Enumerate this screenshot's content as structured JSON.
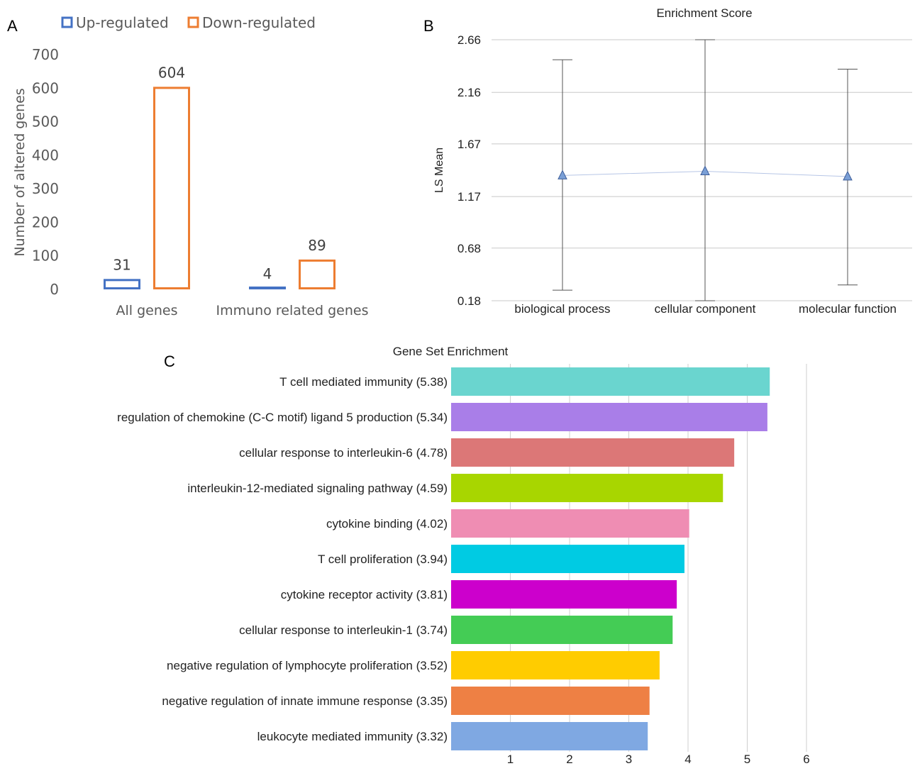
{
  "panels": {
    "a": "A",
    "b": "B",
    "c": "C"
  },
  "chart_data": [
    {
      "id": "A",
      "type": "bar",
      "categories": [
        "All genes",
        "Immuno related genes"
      ],
      "series": [
        {
          "name": "Up-regulated",
          "values": [
            31,
            4
          ],
          "color": "#4472c4"
        },
        {
          "name": "Down-regulated",
          "values": [
            604,
            89
          ],
          "color": "#ed7d31"
        }
      ],
      "ylabel": "Number of altered genes",
      "ylim": [
        0,
        700
      ],
      "yticks": [
        0,
        100,
        200,
        300,
        400,
        500,
        600,
        700
      ],
      "data_labels": true,
      "legend": "top",
      "grid": false
    },
    {
      "id": "B",
      "type": "line",
      "title": "Enrichment Score",
      "ylabel": "LS Mean",
      "categories": [
        "biological process",
        "cellular component",
        "molecular function"
      ],
      "values": [
        1.37,
        1.41,
        1.36
      ],
      "error_low": [
        0.28,
        0.18,
        0.33
      ],
      "error_high": [
        2.47,
        2.66,
        2.38
      ],
      "ylim": [
        0.18,
        2.66
      ],
      "yticks": [
        "0.18",
        "0.68",
        "1.17",
        "1.67",
        "2.16",
        "2.66"
      ],
      "marker": "triangle",
      "marker_color": "#7a9fd6",
      "grid": true
    },
    {
      "id": "C",
      "type": "bar",
      "orientation": "horizontal",
      "title": "Gene Set Enrichment",
      "categories": [
        "T cell mediated immunity (5.38)",
        "regulation of chemokine (C-C motif) ligand 5 production (5.34)",
        "cellular response to interleukin-6 (4.78)",
        "interleukin-12-mediated signaling pathway (4.59)",
        "cytokine binding (4.02)",
        "T cell proliferation (3.94)",
        "cytokine receptor activity (3.81)",
        "cellular response to interleukin-1 (3.74)",
        "negative regulation of lymphocyte proliferation (3.52)",
        "negative regulation of innate immune response (3.35)",
        "leukocyte mediated immunity (3.32)"
      ],
      "values": [
        5.38,
        5.34,
        4.78,
        4.59,
        4.02,
        3.94,
        3.81,
        3.74,
        3.52,
        3.35,
        3.32
      ],
      "colors": [
        "#6ad5cf",
        "#a97ee8",
        "#dc7777",
        "#a8d600",
        "#ef8db3",
        "#00cbe3",
        "#cc00cc",
        "#44cc55",
        "#ffcc00",
        "#ee8044",
        "#7fa8e2"
      ],
      "xlim": [
        0,
        6
      ],
      "xticks": [
        1,
        2,
        3,
        4,
        5,
        6
      ],
      "grid": true
    }
  ]
}
